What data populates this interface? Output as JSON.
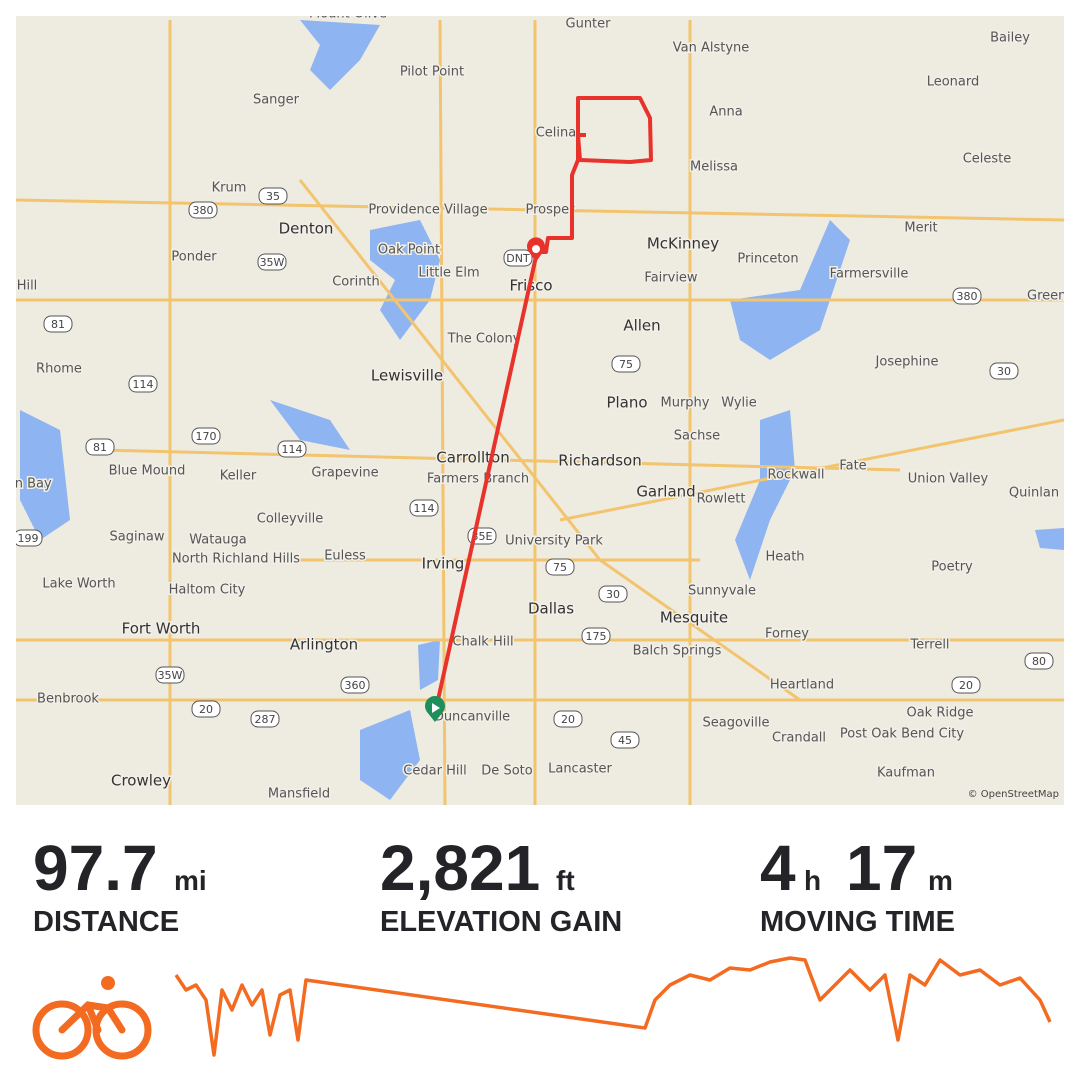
{
  "map": {
    "places": [
      "Mount Olive",
      "Gunter",
      "Van Alstyne",
      "Bailey",
      "Pilot Point",
      "Leonard",
      "Sanger",
      "Anna",
      "Celina",
      "Melissa",
      "Celeste",
      "Krum",
      "Providence Village",
      "Denton",
      "Prosper",
      "McKinney",
      "Merit",
      "Ponder",
      "Oak Point",
      "Little Elm",
      "Corinth",
      "Frisco",
      "Fairview",
      "Princeton",
      "Farmersville",
      "Hill",
      "Greenville",
      "The Colony",
      "Allen",
      "Josephine",
      "Rhome",
      "Lewisville",
      "Plano",
      "Murphy",
      "Wylie",
      "Sachse",
      "Carrollton",
      "Richardson",
      "Blue Mound",
      "Keller",
      "Grapevine",
      "Farmers Branch",
      "Garland",
      "Rowlett",
      "Rockwall",
      "Fate",
      "Union Valley",
      "Quinlan",
      "Pecan Bay",
      "Saginaw",
      "Watauga",
      "Colleyville",
      "Euless",
      "North Richland Hills",
      "Irving",
      "University Park",
      "Heath",
      "Poetry",
      "Lake Worth",
      "Haltom City",
      "Dallas",
      "Sunnyvale",
      "Mesquite",
      "Fort Worth",
      "Arlington",
      "Chalk Hill",
      "Forney",
      "Terrell",
      "Balch Springs",
      "Benbrook",
      "Heartland",
      "Duncanville",
      "Oak Ridge",
      "Seagoville",
      "Crandall",
      "Post Oak Bend City",
      "Cedar Hill",
      "De Soto",
      "Lancaster",
      "Kaufman",
      "Crowley",
      "Mansfield"
    ],
    "shields": [
      "35",
      "380",
      "35W",
      "81",
      "114",
      "170",
      "114",
      "81",
      "199",
      "114",
      "35E",
      "75",
      "75",
      "30",
      "175",
      "360",
      "35W",
      "20",
      "287",
      "20",
      "45",
      "380",
      "30",
      "20",
      "80",
      "DNT"
    ],
    "attribution": "© OpenStreetMap"
  },
  "stats": [
    {
      "value": "97.7",
      "unit": "mi",
      "label": "DISTANCE"
    },
    {
      "value": "2,821",
      "unit": "ft",
      "label": "ELEVATION GAIN"
    },
    {
      "value": "4",
      "unit": "h",
      "value2": "17",
      "unit2": "m",
      "label": "MOVING TIME"
    }
  ]
}
